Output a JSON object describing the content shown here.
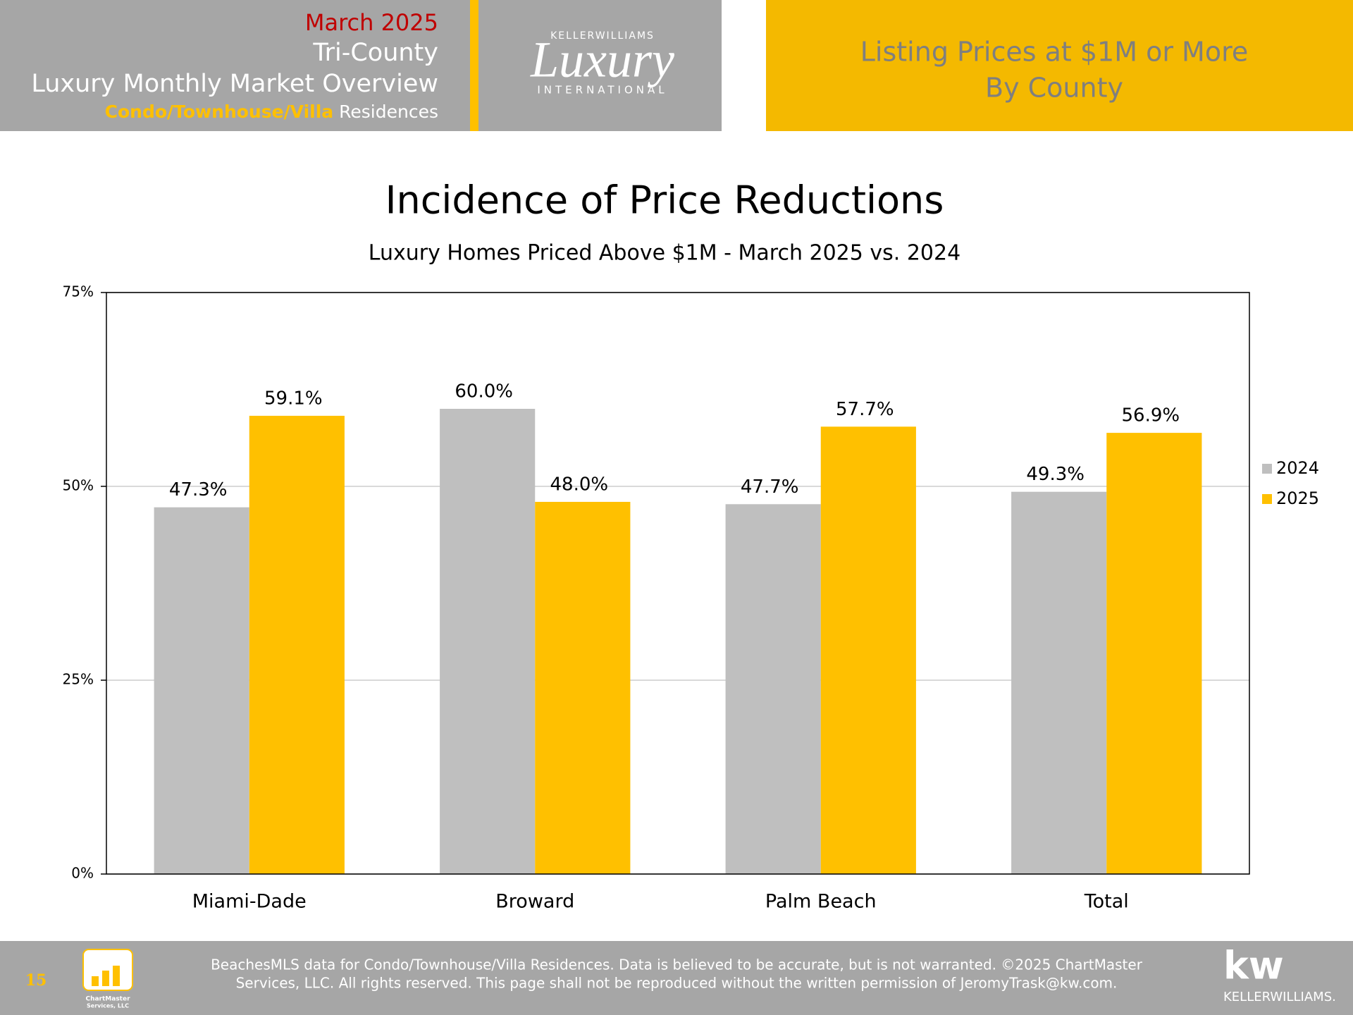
{
  "header": {
    "date": "March 2025",
    "region": "Tri-County",
    "report": "Luxury Monthly Market Overview",
    "segment": "Condo/Townhouse/Villa",
    "segment_suffix": "Residences",
    "logo": {
      "top": "KELLERWILLIAMS",
      "script": "Luxury",
      "bottom": "INTERNATIONAL"
    },
    "banner": [
      "Listing Prices at $1M or More",
      "By County"
    ]
  },
  "chart_data": {
    "type": "bar",
    "title": "Incidence of Price Reductions",
    "subtitle": "Luxury Homes Priced Above $1M - March 2025 vs. 2024",
    "categories": [
      "Miami-Dade",
      "Broward",
      "Palm Beach",
      "Total"
    ],
    "series": [
      {
        "name": "2024",
        "color": "#bfbfbf",
        "values": [
          47.3,
          60.0,
          47.7,
          49.3
        ],
        "value_labels": [
          "47.3%",
          "60.0%",
          "47.7%",
          "49.3%"
        ]
      },
      {
        "name": "2025",
        "color": "#ffc000",
        "values": [
          59.1,
          48.0,
          57.7,
          56.9
        ],
        "value_labels": [
          "59.1%",
          "48.0%",
          "57.7%",
          "56.9%"
        ]
      }
    ],
    "ylim": [
      0,
      75
    ],
    "yticks": [
      {
        "value": 0,
        "label": "0%"
      },
      {
        "value": 25,
        "label": "25%"
      },
      {
        "value": 50,
        "label": "50%"
      },
      {
        "value": 75,
        "label": "75%"
      }
    ],
    "grid": true,
    "legend": "right"
  },
  "footer": {
    "page": "15",
    "source": [
      "BeachesMLS data for Condo/Townhouse/Villa Residences.  Data is believed to be accurate, but is not warranted.   ©2025  ChartMaster",
      "Services, LLC.  All rights reserved. This page shall not be reproduced without the written permission of JeromyTrask@kw.com."
    ],
    "chartmaster": [
      "ChartMaster",
      "Services, LLC"
    ],
    "kw": "kw",
    "kw_name": "KELLERWILLIAMS."
  }
}
